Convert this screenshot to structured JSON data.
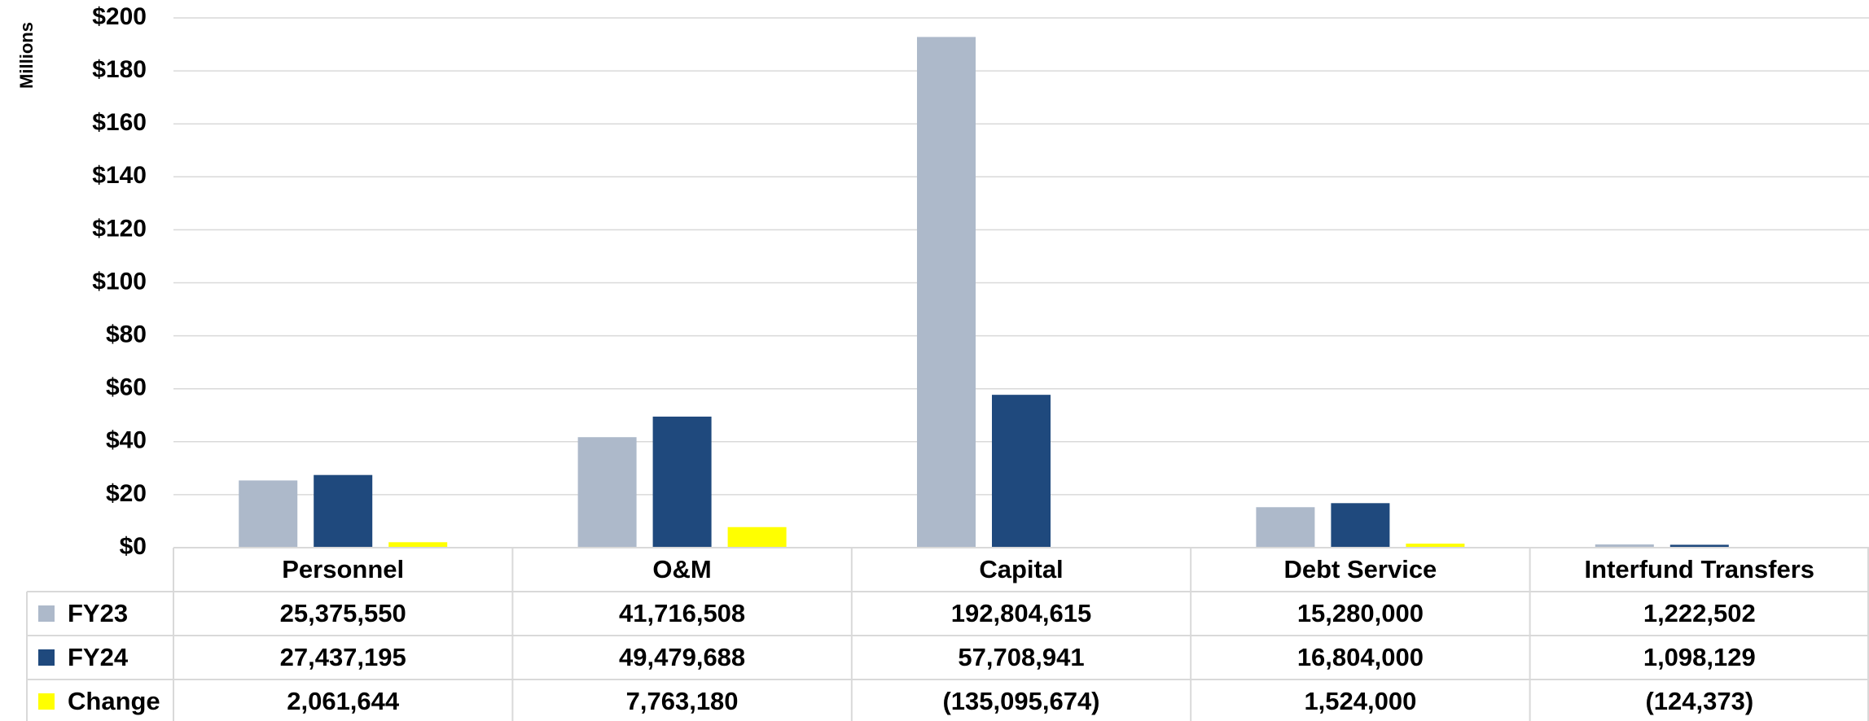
{
  "chart_data": {
    "type": "bar",
    "ylabel": "Millions",
    "categories": [
      "Personnel",
      "O&M",
      "Capital",
      "Debt Service",
      "Interfund Transfers"
    ],
    "ylim": [
      0,
      200
    ],
    "yticks": [
      0,
      20,
      40,
      60,
      80,
      100,
      120,
      140,
      160,
      180,
      200
    ],
    "ytick_labels": [
      "$0",
      "$20",
      "$40",
      "$60",
      "$80",
      "$100",
      "$120",
      "$140",
      "$160",
      "$180",
      "$200"
    ],
    "grid": true,
    "legend_position": "data-table-left",
    "series": [
      {
        "name": "FY23",
        "color": "#adb9ca",
        "values": [
          25375550,
          41716508,
          192804615,
          15280000,
          1222502
        ],
        "table_values": [
          "25,375,550",
          "41,716,508",
          "192,804,615",
          "15,280,000",
          "1,222,502"
        ]
      },
      {
        "name": "FY24",
        "color": "#1f497d",
        "values": [
          27437195,
          49479688,
          57708941,
          16804000,
          1098129
        ],
        "table_values": [
          "27,437,195",
          "49,479,688",
          "57,708,941",
          "16,804,000",
          "1,098,129"
        ]
      },
      {
        "name": "Change",
        "color": "#ffff00",
        "values": [
          2061644,
          7763180,
          -135095674,
          1524000,
          -124373
        ],
        "table_values": [
          "2,061,644",
          "7,763,180",
          "(135,095,674)",
          "1,524,000",
          "(124,373)"
        ]
      }
    ]
  }
}
